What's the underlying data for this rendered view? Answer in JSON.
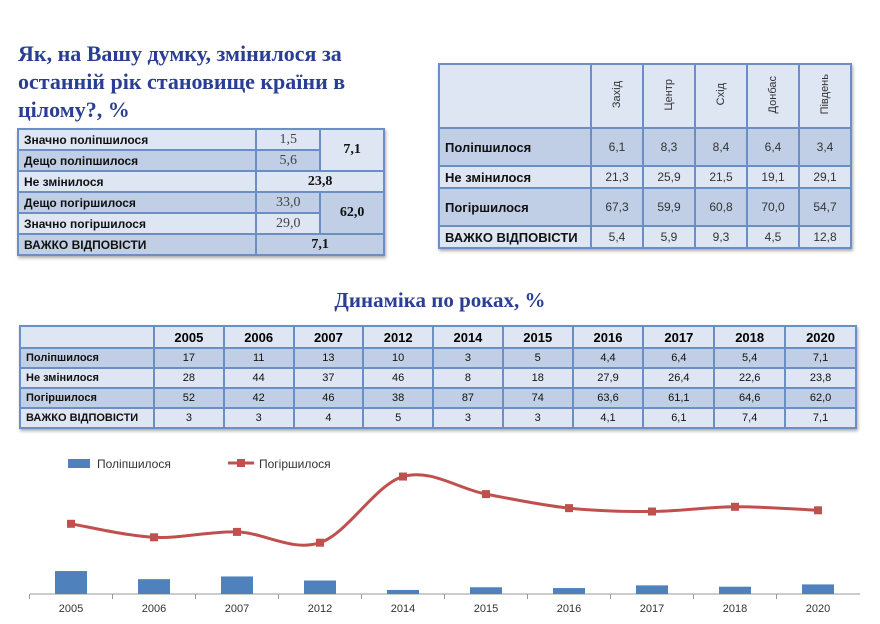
{
  "title": "Як, на Вашу думку, змінилося за останній рік становище країни в цілому?, %",
  "summary_table": {
    "rows": [
      {
        "label": "Значно поліпшилося",
        "value": "1,5"
      },
      {
        "label": "Дещо поліпшилося",
        "value": "5,6"
      },
      {
        "label": "Не змінилося",
        "value": "23,8"
      },
      {
        "label": "Дещо погіршилося",
        "value": "33,0"
      },
      {
        "label": "Значно погіршилося",
        "value": "29,0"
      },
      {
        "label": "ВАЖКО ВІДПОВІСТИ",
        "value": "7,1"
      }
    ],
    "improved_total": "7,1",
    "worsened_total": "62,0"
  },
  "region_table": {
    "columns": [
      "Захід",
      "Центр",
      "Схід",
      "Донбас",
      "Південь"
    ],
    "rows": [
      {
        "label": "Поліпшилося",
        "values": [
          "6,1",
          "8,3",
          "8,4",
          "6,4",
          "3,4"
        ]
      },
      {
        "label": "Не змінилося",
        "values": [
          "21,3",
          "25,9",
          "21,5",
          "19,1",
          "29,1"
        ]
      },
      {
        "label": "Погіршилося",
        "values": [
          "67,3",
          "59,9",
          "60,8",
          "70,0",
          "54,7"
        ]
      },
      {
        "label": "ВАЖКО ВІДПОВІСТИ",
        "values": [
          "5,4",
          "5,9",
          "9,3",
          "4,5",
          "12,8"
        ]
      }
    ]
  },
  "dynamics_title": "Динаміка по роках, %",
  "year_table": {
    "years": [
      "2005",
      "2006",
      "2007",
      "2012",
      "2014",
      "2015",
      "2016",
      "2017",
      "2018",
      "2020"
    ],
    "rows": [
      {
        "label": "Поліпшилося",
        "values": [
          "17",
          "11",
          "13",
          "10",
          "3",
          "5",
          "4,4",
          "6,4",
          "5,4",
          "7,1"
        ]
      },
      {
        "label": "Не змінилося",
        "values": [
          "28",
          "44",
          "37",
          "46",
          "8",
          "18",
          "27,9",
          "26,4",
          "22,6",
          "23,8"
        ]
      },
      {
        "label": "Погіршилося",
        "values": [
          "52",
          "42",
          "46",
          "38",
          "87",
          "74",
          "63,6",
          "61,1",
          "64,6",
          "62,0"
        ]
      },
      {
        "label": "ВАЖКО ВІДПОВІСТИ",
        "values": [
          "3",
          "3",
          "4",
          "5",
          "3",
          "3",
          "4,1",
          "6,1",
          "7,4",
          "7,1"
        ]
      }
    ]
  },
  "chart_data": {
    "type": "bar+line",
    "categories": [
      "2005",
      "2006",
      "2007",
      "2012",
      "2014",
      "2015",
      "2016",
      "2017",
      "2018",
      "2020"
    ],
    "series": [
      {
        "name": "Поліпшилося",
        "type": "bar",
        "color": "#4f81bd",
        "values": [
          17,
          11,
          13,
          10,
          3,
          5,
          4.4,
          6.4,
          5.4,
          7.1
        ]
      },
      {
        "name": "Погіршилося",
        "type": "line",
        "color": "#c0504d",
        "values": [
          52,
          42,
          46,
          38,
          87,
          74,
          63.6,
          61.1,
          64.6,
          62.0
        ]
      }
    ],
    "legend": "top-left",
    "grid": false
  }
}
